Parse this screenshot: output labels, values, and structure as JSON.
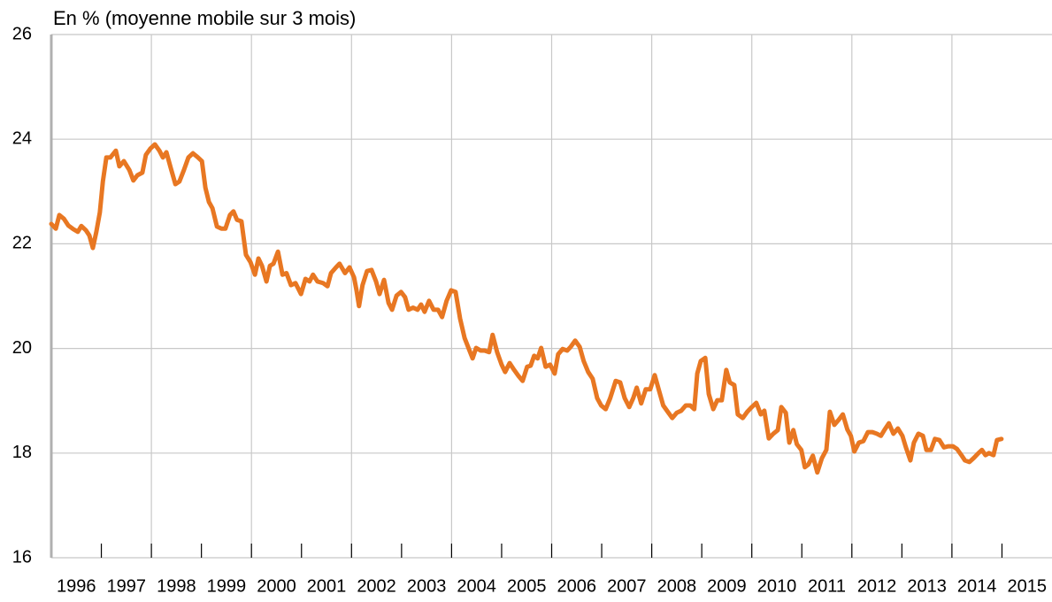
{
  "chart_data": {
    "type": "line",
    "title": "En % (moyenne mobile sur 3 mois)",
    "categories": [
      "1996",
      "1997",
      "1998",
      "1999",
      "2000",
      "2001",
      "2002",
      "2003",
      "2004",
      "2005",
      "2006",
      "2007",
      "2008",
      "2009",
      "2010",
      "2011",
      "2012",
      "2013",
      "2014",
      "2015"
    ],
    "xlim": [
      1996,
      2016
    ],
    "xticks": [
      1997,
      1998,
      1999,
      2000,
      2001,
      2002,
      2003,
      2004,
      2005,
      2006,
      2007,
      2008,
      2009,
      2010,
      2011,
      2012,
      2013,
      2014,
      2015
    ],
    "xgrid": [
      1998,
      2000,
      2002,
      2004,
      2006,
      2008,
      2010,
      2012,
      2014
    ],
    "ylim": [
      16,
      26
    ],
    "yticks": [
      16,
      18,
      20,
      22,
      24,
      26
    ],
    "grid": true,
    "x": [
      1996.0,
      1996.09,
      1996.16,
      1996.25,
      1996.34,
      1996.44,
      1996.53,
      1996.6,
      1996.69,
      1996.76,
      1996.83,
      1996.9,
      1996.97,
      1997.03,
      1997.1,
      1997.18,
      1997.29,
      1997.36,
      1997.45,
      1997.56,
      1997.64,
      1997.72,
      1997.82,
      1997.89,
      1997.98,
      1998.07,
      1998.16,
      1998.23,
      1998.3,
      1998.39,
      1998.48,
      1998.56,
      1998.65,
      1998.74,
      1998.83,
      1998.92,
      1999.01,
      1999.08,
      1999.15,
      1999.22,
      1999.31,
      1999.4,
      1999.48,
      1999.57,
      1999.64,
      1999.71,
      1999.8,
      1999.89,
      1999.98,
      2000.07,
      2000.14,
      2000.21,
      2000.3,
      2000.37,
      2000.44,
      2000.53,
      2000.62,
      2000.7,
      2000.79,
      2000.88,
      2000.99,
      2001.08,
      2001.16,
      2001.23,
      2001.32,
      2001.43,
      2001.52,
      2001.59,
      2001.69,
      2001.76,
      2001.87,
      2001.96,
      2002.05,
      2002.1,
      2002.15,
      2002.22,
      2002.31,
      2002.4,
      2002.49,
      2002.56,
      2002.65,
      2002.74,
      2002.81,
      2002.9,
      2002.99,
      2003.07,
      2003.14,
      2003.23,
      2003.32,
      2003.39,
      2003.46,
      2003.55,
      2003.64,
      2003.73,
      2003.81,
      2003.9,
      2003.99,
      2004.08,
      2004.17,
      2004.26,
      2004.35,
      2004.42,
      2004.49,
      2004.58,
      2004.66,
      2004.75,
      2004.82,
      2004.91,
      2005.0,
      2005.07,
      2005.16,
      2005.25,
      2005.34,
      2005.42,
      2005.51,
      2005.58,
      2005.65,
      2005.72,
      2005.79,
      2005.88,
      2005.97,
      2006.06,
      2006.13,
      2006.22,
      2006.31,
      2006.38,
      2006.47,
      2006.56,
      2006.64,
      2006.73,
      2006.82,
      2006.91,
      2006.99,
      2007.08,
      2007.17,
      2007.28,
      2007.37,
      2007.46,
      2007.55,
      2007.63,
      2007.7,
      2007.79,
      2007.88,
      2007.97,
      2008.06,
      2008.15,
      2008.23,
      2008.32,
      2008.41,
      2008.5,
      2008.59,
      2008.68,
      2008.77,
      2008.85,
      2008.91,
      2008.98,
      2009.07,
      2009.14,
      2009.23,
      2009.31,
      2009.4,
      2009.49,
      2009.56,
      2009.65,
      2009.72,
      2009.82,
      2009.91,
      2010.0,
      2010.09,
      2010.18,
      2010.25,
      2010.34,
      2010.43,
      2010.52,
      2010.59,
      2010.68,
      2010.75,
      2010.83,
      2010.9,
      2010.99,
      2011.06,
      2011.13,
      2011.22,
      2011.31,
      2011.4,
      2011.49,
      2011.56,
      2011.65,
      2011.74,
      2011.82,
      2011.91,
      2011.98,
      2012.05,
      2012.14,
      2012.23,
      2012.32,
      2012.41,
      2012.5,
      2012.58,
      2012.65,
      2012.74,
      2012.83,
      2012.92,
      2013.01,
      2013.08,
      2013.17,
      2013.24,
      2013.33,
      2013.42,
      2013.49,
      2013.58,
      2013.66,
      2013.75,
      2013.84,
      2013.93,
      2014.02,
      2014.1,
      2014.19,
      2014.26,
      2014.35,
      2014.44,
      2014.53,
      2014.6,
      2014.67,
      2014.74,
      2014.83,
      2014.9,
      2014.99
    ],
    "series": [
      {
        "color": "#e87722",
        "values": [
          22.38,
          22.29,
          22.55,
          22.48,
          22.35,
          22.28,
          22.23,
          22.34,
          22.26,
          22.16,
          21.92,
          22.23,
          22.6,
          23.19,
          23.65,
          23.65,
          23.78,
          23.48,
          23.58,
          23.41,
          23.21,
          23.31,
          23.36,
          23.7,
          23.82,
          23.9,
          23.78,
          23.65,
          23.75,
          23.44,
          23.14,
          23.19,
          23.41,
          23.65,
          23.73,
          23.66,
          23.58,
          23.07,
          22.8,
          22.68,
          22.33,
          22.29,
          22.29,
          22.55,
          22.62,
          22.46,
          22.43,
          21.79,
          21.65,
          21.41,
          21.72,
          21.58,
          21.28,
          21.58,
          21.62,
          21.85,
          21.41,
          21.44,
          21.21,
          21.25,
          21.04,
          21.33,
          21.28,
          21.41,
          21.28,
          21.25,
          21.19,
          21.44,
          21.55,
          21.62,
          21.44,
          21.55,
          21.36,
          21.11,
          20.81,
          21.21,
          21.48,
          21.5,
          21.28,
          21.04,
          21.31,
          20.87,
          20.74,
          21.01,
          21.08,
          20.98,
          20.74,
          20.78,
          20.74,
          20.84,
          20.7,
          20.91,
          20.74,
          20.74,
          20.6,
          20.91,
          21.11,
          21.08,
          20.57,
          20.2,
          19.98,
          19.81,
          20.01,
          19.96,
          19.96,
          19.93,
          20.26,
          19.93,
          19.69,
          19.55,
          19.72,
          19.59,
          19.47,
          19.38,
          19.65,
          19.67,
          19.86,
          19.81,
          20.01,
          19.65,
          19.69,
          19.52,
          19.89,
          19.99,
          19.96,
          20.03,
          20.15,
          20.03,
          19.76,
          19.55,
          19.42,
          19.05,
          18.91,
          18.84,
          19.05,
          19.38,
          19.35,
          19.05,
          18.88,
          19.05,
          19.25,
          18.95,
          19.22,
          19.22,
          19.49,
          19.18,
          18.91,
          18.79,
          18.67,
          18.77,
          18.81,
          18.91,
          18.91,
          18.84,
          19.52,
          19.76,
          19.82,
          19.13,
          18.84,
          19.01,
          19.01,
          19.59,
          19.35,
          19.3,
          18.74,
          18.67,
          18.79,
          18.88,
          18.96,
          18.74,
          18.81,
          18.28,
          18.37,
          18.44,
          18.88,
          18.77,
          18.2,
          18.44,
          18.17,
          18.06,
          17.73,
          17.78,
          17.95,
          17.63,
          17.9,
          18.06,
          18.79,
          18.54,
          18.64,
          18.74,
          18.45,
          18.33,
          18.03,
          18.2,
          18.23,
          18.4,
          18.4,
          18.37,
          18.33,
          18.44,
          18.57,
          18.37,
          18.47,
          18.33,
          18.11,
          17.86,
          18.2,
          18.37,
          18.33,
          18.06,
          18.06,
          18.27,
          18.25,
          18.11,
          18.13,
          18.13,
          18.08,
          17.96,
          17.86,
          17.83,
          17.91,
          18.0,
          18.06,
          17.96,
          18.0,
          17.96,
          18.25,
          18.27
        ]
      }
    ]
  }
}
